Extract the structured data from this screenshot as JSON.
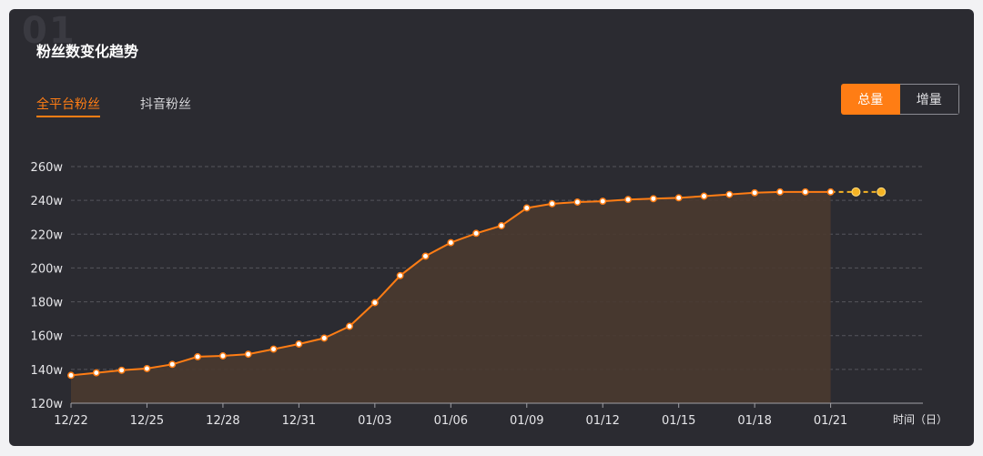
{
  "card": {
    "bg_number": "01",
    "title": "粉丝数变化趋势"
  },
  "tabs": [
    {
      "label": "全平台粉丝",
      "active": true
    },
    {
      "label": "抖音粉丝",
      "active": false
    }
  ],
  "toggle": {
    "total_label": "总量",
    "increment_label": "增量",
    "selected": "总量"
  },
  "colors": {
    "accent": "#ff7d14",
    "forecast": "#f5b324",
    "card_bg": "#2b2b31",
    "grid": "#55555c",
    "area_fill": "#4a3a30"
  },
  "chart_data": {
    "type": "line",
    "title": "",
    "xlabel": "时间（日）",
    "ylabel": "",
    "y_unit": "w",
    "ylim": [
      120,
      260
    ],
    "y_ticks": [
      120,
      140,
      160,
      180,
      200,
      220,
      240,
      260
    ],
    "y_tick_labels": [
      "120w",
      "140w",
      "160w",
      "180w",
      "200w",
      "220w",
      "240w",
      "260w"
    ],
    "x_tick_labels": [
      "12/22",
      "12/25",
      "12/28",
      "12/31",
      "01/03",
      "01/06",
      "01/09",
      "01/12",
      "01/15",
      "01/18",
      "01/21"
    ],
    "x_tick_days": [
      0,
      3,
      6,
      9,
      12,
      15,
      18,
      21,
      24,
      27,
      30
    ],
    "grid": "horizontal-dashed",
    "area_fill": true,
    "series": [
      {
        "values": [
          {
            "x": "12/22",
            "y": 136.5
          },
          {
            "x": "12/23",
            "y": 138
          },
          {
            "x": "12/24",
            "y": 139.5
          },
          {
            "x": "12/25",
            "y": 140.5
          },
          {
            "x": "12/26",
            "y": 143
          },
          {
            "x": "12/27",
            "y": 147.5
          },
          {
            "x": "12/28",
            "y": 148
          },
          {
            "x": "12/29",
            "y": 149
          },
          {
            "x": "12/30",
            "y": 152
          },
          {
            "x": "12/31",
            "y": 155
          },
          {
            "x": "01/01",
            "y": 158.5
          },
          {
            "x": "01/02",
            "y": 165.5
          },
          {
            "x": "01/03",
            "y": 179.5
          },
          {
            "x": "01/04",
            "y": 195.5
          },
          {
            "x": "01/05",
            "y": 207
          },
          {
            "x": "01/06",
            "y": 215
          },
          {
            "x": "01/07",
            "y": 220.5
          },
          {
            "x": "01/08",
            "y": 225
          },
          {
            "x": "01/09",
            "y": 235.5
          },
          {
            "x": "01/10",
            "y": 238
          },
          {
            "x": "01/11",
            "y": 239
          },
          {
            "x": "01/12",
            "y": 239.5
          },
          {
            "x": "01/13",
            "y": 240.5
          },
          {
            "x": "01/14",
            "y": 241
          },
          {
            "x": "01/15",
            "y": 241.5
          },
          {
            "x": "01/16",
            "y": 242.5
          },
          {
            "x": "01/17",
            "y": 243.5
          },
          {
            "x": "01/18",
            "y": 244.5
          },
          {
            "x": "01/19",
            "y": 245
          },
          {
            "x": "01/20",
            "y": 245
          },
          {
            "x": "01/21",
            "y": 245
          }
        ],
        "style": "solid"
      },
      {
        "values": [
          {
            "x": "01/21",
            "y": 245
          },
          {
            "x": "01/22",
            "y": 245
          },
          {
            "x": "01/23",
            "y": 245
          }
        ],
        "style": "dashed-forecast"
      }
    ]
  }
}
